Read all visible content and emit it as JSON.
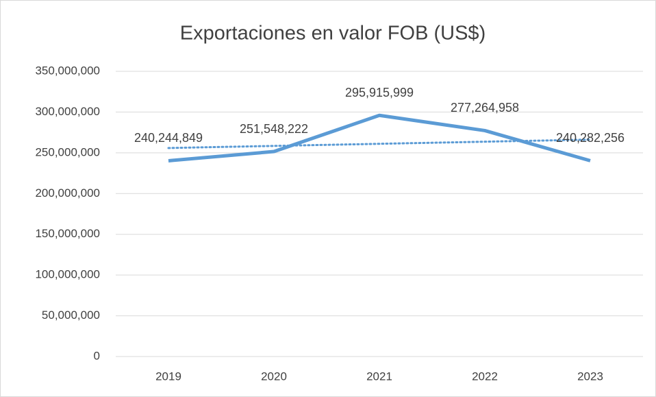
{
  "chart_data": {
    "type": "line",
    "title": "Exportaciones en valor FOB (US$)",
    "categories": [
      "2019",
      "2020",
      "2021",
      "2022",
      "2023"
    ],
    "series": [
      {
        "color": "#5b9bd5",
        "values": [
          240244849,
          251548222,
          295915999,
          277264958,
          240282256
        ],
        "value_labels": [
          "240,244,849",
          "251,548,222",
          "295,915,999",
          "277,264,958",
          "240,282,256"
        ]
      }
    ],
    "trendline": "linear",
    "ylim": [
      0,
      350000000
    ],
    "yticks": [
      0,
      {
        "value": 50000000,
        "label": "50,000,000"
      },
      {
        "value": 100000000,
        "label": "100,000,000"
      },
      {
        "value": 150000000,
        "label": "150,000,000"
      },
      {
        "value": 200000000,
        "label": "200,000,000"
      },
      {
        "value": 250000000,
        "label": "250,000,000"
      },
      {
        "value": 300000000,
        "label": "300,000,000"
      },
      {
        "value": 350000000,
        "label": "350,000,000"
      }
    ],
    "grid": true
  }
}
